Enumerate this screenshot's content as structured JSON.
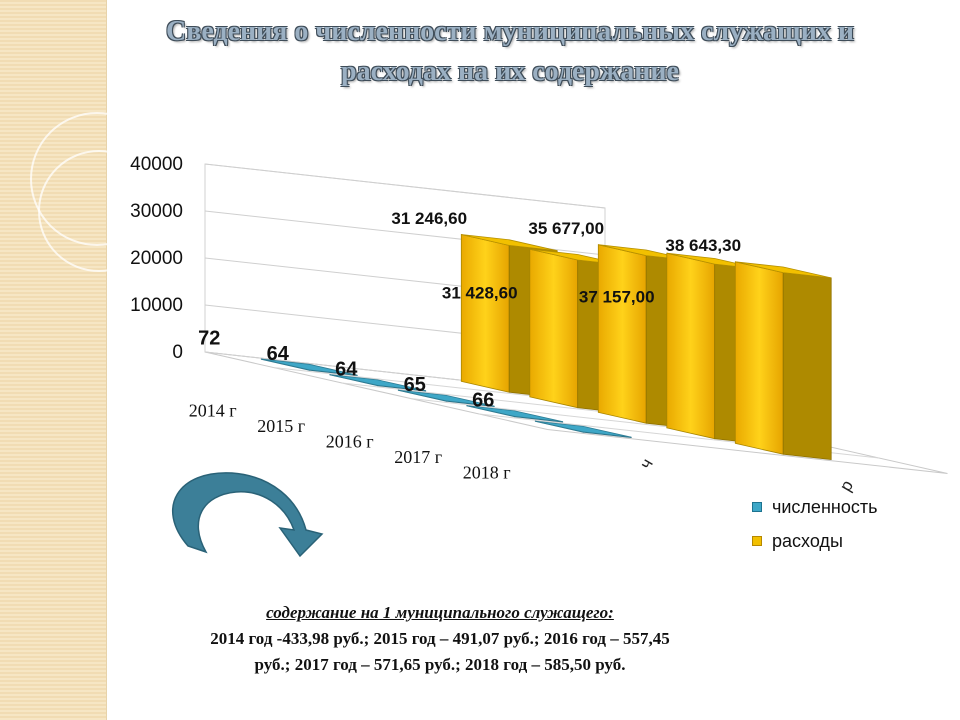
{
  "title": {
    "line1": "Сведения о численности муниципальных служащих и",
    "line2": "расходах на их содержание"
  },
  "colors": {
    "accent_blue": "#3ea7c7",
    "accent_gold": "#f2c000",
    "title_fill": "#9bb0c3"
  },
  "chart_data": {
    "type": "bar",
    "chart_style": "3d-column",
    "categories": [
      "2014 г",
      "2015 г",
      "2016 г",
      "2017 г",
      "2018 г"
    ],
    "series": [
      {
        "name": "численность",
        "axis_label": "ч",
        "values": [
          72,
          64,
          64,
          65,
          66
        ],
        "data_labels": [
          "72",
          "64",
          "64",
          "65",
          "66"
        ],
        "color": "#3ea7c7"
      },
      {
        "name": "расходы",
        "axis_label": "р",
        "values": [
          31246.6,
          31428.6,
          35677.0,
          37157.0,
          38643.3
        ],
        "data_labels": [
          "31 246,60",
          "31 428,60",
          "35 677,00",
          "37 157,00",
          "38 643,30"
        ],
        "color": "#f2c000"
      }
    ],
    "y_ticks": [
      "0",
      "10000",
      "20000",
      "30000",
      "40000"
    ],
    "ylim": [
      0,
      40000
    ],
    "legend_position": "right",
    "grid": true
  },
  "footer": {
    "heading": "содержание на 1 муниципального  служащего:",
    "line1": "2014 год -433,98 руб.; 2015 год – 491,07 руб.; 2016 год – 557,45",
    "line2": "руб.; 2017 год – 571,65 руб.; 2018 год – 585,50 руб."
  },
  "decor": {
    "arrow_icon": "curved-arrow-down-icon"
  }
}
